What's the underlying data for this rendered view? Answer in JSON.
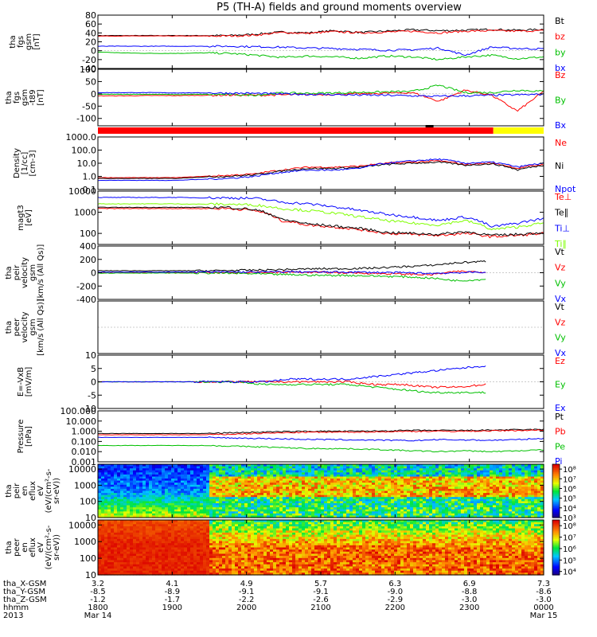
{
  "title": "P5 (TH-A) fields and ground moments overview",
  "colors": {
    "black": "#000000",
    "red": "#ff0000",
    "green": "#00c000",
    "blue": "#0000ff",
    "lightgreen": "#7fff00",
    "yellow": "#ffff00",
    "orange": "#ff7f00"
  },
  "chart_data": [
    {
      "type": "line",
      "id": "fgs",
      "ylabel": [
        "tha",
        "fgs",
        "gsm",
        "[nT]"
      ],
      "ylim": [
        -40,
        80
      ],
      "ticks": [
        "80",
        "60",
        "40",
        "20",
        "0",
        "-20",
        "-40"
      ],
      "tick_values": [
        80,
        60,
        40,
        20,
        0,
        -20,
        -40
      ],
      "series": [
        {
          "name": "Bt",
          "color": "black",
          "values": [
            34,
            34,
            34,
            34,
            34,
            34,
            37,
            42,
            40,
            45,
            41,
            44,
            47,
            45,
            46,
            48,
            46,
            48
          ]
        },
        {
          "name": "bz",
          "color": "red",
          "values": [
            33,
            33,
            33,
            33,
            33,
            33,
            35,
            41,
            39,
            43,
            40,
            42,
            44,
            40,
            44,
            45,
            44,
            45
          ]
        },
        {
          "name": "by",
          "color": "green",
          "values": [
            -3,
            -5,
            -6,
            -6,
            -5,
            -6,
            -10,
            -15,
            -12,
            -14,
            -17,
            -12,
            -14,
            -20,
            -14,
            -10,
            -18,
            -14
          ]
        },
        {
          "name": "bx",
          "color": "blue",
          "values": [
            10,
            10,
            10,
            10,
            10,
            10,
            9,
            8,
            6,
            5,
            3,
            1,
            2,
            6,
            -10,
            8,
            5,
            4
          ]
        }
      ]
    },
    {
      "type": "line",
      "id": "fgs-t89",
      "ylabel": [
        "tha",
        "fgs",
        "gsm",
        "-t89",
        "[nT]"
      ],
      "ylim": [
        -130,
        100
      ],
      "ticks": [
        "100",
        "50",
        "0",
        "-50",
        "-100"
      ],
      "tick_values": [
        100,
        50,
        0,
        -50,
        -100
      ],
      "series": [
        {
          "name": "Bz",
          "color": "red",
          "values": [
            -8,
            -8,
            -7,
            -7,
            -6,
            -5,
            -6,
            -4,
            -3,
            -2,
            0,
            3,
            5,
            -30,
            15,
            -5,
            -70,
            10
          ]
        },
        {
          "name": "By",
          "color": "green",
          "values": [
            -2,
            -2,
            -2,
            -3,
            -2,
            -3,
            -5,
            4,
            2,
            4,
            6,
            8,
            10,
            35,
            5,
            5,
            15,
            10
          ]
        },
        {
          "name": "Bx",
          "color": "blue",
          "values": [
            5,
            5,
            5,
            4,
            4,
            3,
            2,
            0,
            -2,
            -3,
            -5,
            -6,
            -8,
            -10,
            -8,
            -6,
            -4,
            -2
          ]
        }
      ]
    },
    {
      "type": "line",
      "id": "density",
      "scale": "log",
      "ylabel": [
        "Density",
        "[1/cc]",
        "[cm-3]"
      ],
      "ylim": [
        0.1,
        1000
      ],
      "ticks": [
        "1000.0",
        "100.0",
        "10.0",
        "1.0",
        "0.1"
      ],
      "tick_values": [
        1000,
        100,
        10,
        1,
        0.1
      ],
      "series": [
        {
          "name": "Ne",
          "color": "red",
          "values": [
            0.8,
            0.8,
            0.8,
            0.8,
            1.0,
            1.2,
            1.5,
            3,
            5,
            5,
            6,
            10,
            12,
            15,
            8,
            10,
            4,
            8
          ]
        },
        {
          "name": "Ni",
          "color": "black",
          "values": [
            0.7,
            0.7,
            0.7,
            0.7,
            0.9,
            1.0,
            1.3,
            2.5,
            4,
            4,
            5,
            8,
            10,
            12,
            7,
            9,
            3,
            7
          ]
        },
        {
          "name": "Npot",
          "color": "blue",
          "values": [
            0.5,
            0.5,
            0.5,
            0.5,
            0.6,
            0.7,
            1.0,
            2,
            3,
            3,
            4,
            10,
            15,
            20,
            10,
            12,
            5,
            10
          ]
        }
      ]
    },
    {
      "type": "line",
      "id": "temperature",
      "scale": "log",
      "ylabel": [
        "magt3",
        "[eV]"
      ],
      "ylim": [
        30,
        10000
      ],
      "ticks": [
        "10000",
        "1000",
        "100"
      ],
      "tick_values": [
        10000,
        1000,
        100
      ],
      "series": [
        {
          "name": "Te⊥",
          "color": "red",
          "values": [
            1500,
            1500,
            1500,
            1500,
            1500,
            1500,
            1200,
            400,
            250,
            200,
            150,
            100,
            90,
            80,
            100,
            70,
            80,
            100
          ]
        },
        {
          "name": "Te∥",
          "color": "black",
          "values": [
            1700,
            1700,
            1700,
            1700,
            1700,
            1700,
            1300,
            450,
            280,
            220,
            170,
            110,
            100,
            90,
            120,
            80,
            90,
            110
          ]
        },
        {
          "name": "Ti⊥",
          "color": "blue",
          "values": [
            5000,
            5000,
            5000,
            5000,
            4800,
            4800,
            4500,
            3000,
            2500,
            1800,
            1200,
            800,
            600,
            400,
            600,
            200,
            300,
            500
          ]
        },
        {
          "name": "Ti∥",
          "color": "lightgreen",
          "values": [
            2500,
            2500,
            2500,
            2500,
            2400,
            2400,
            2200,
            1500,
            1200,
            900,
            600,
            400,
            300,
            250,
            400,
            150,
            200,
            300
          ]
        }
      ]
    },
    {
      "type": "line",
      "id": "peir-velocity",
      "ylabel": [
        "tha",
        "peir",
        "velocity",
        "gsm",
        "[km/s (All Qs)]"
      ],
      "ylim": [
        -400,
        400
      ],
      "ticks": [
        "400",
        "200",
        "0",
        "-200",
        "-400"
      ],
      "tick_values": [
        400,
        200,
        0,
        -200,
        -400
      ],
      "series": [
        {
          "name": "Vt",
          "color": "black",
          "values": [
            30,
            30,
            30,
            30,
            30,
            35,
            40,
            50,
            60,
            60,
            70,
            90,
            110,
            150,
            170
          ]
        },
        {
          "name": "Vz",
          "color": "red",
          "values": [
            5,
            5,
            5,
            5,
            5,
            0,
            5,
            10,
            5,
            0,
            -10,
            -20,
            -30,
            20,
            10
          ]
        },
        {
          "name": "Vy",
          "color": "green",
          "values": [
            -5,
            -5,
            -5,
            -5,
            -5,
            -10,
            -20,
            -30,
            -40,
            -40,
            -50,
            -60,
            -80,
            -120,
            -100
          ]
        },
        {
          "name": "Vx",
          "color": "blue",
          "values": [
            10,
            10,
            10,
            10,
            10,
            10,
            10,
            15,
            10,
            10,
            5,
            0,
            -10,
            0,
            10
          ]
        }
      ]
    },
    {
      "type": "line",
      "id": "peer-velocity",
      "ylabel": [
        "tha",
        "peer",
        "velocity",
        "gsm",
        "[km/s (All Qs)]"
      ],
      "ylim": [
        -1,
        1
      ],
      "ticks": [],
      "tick_values": [],
      "series": [
        {
          "name": "Vt",
          "color": "black",
          "values": []
        },
        {
          "name": "Vz",
          "color": "red",
          "values": []
        },
        {
          "name": "Vy",
          "color": "green",
          "values": []
        },
        {
          "name": "Vx",
          "color": "blue",
          "values": []
        }
      ]
    },
    {
      "type": "line",
      "id": "efield",
      "ylabel": [
        "E=-VxB",
        "[mV/m]"
      ],
      "ylim": [
        -10,
        10
      ],
      "ticks": [
        "10",
        "5",
        "0",
        "-5",
        "-10"
      ],
      "tick_values": [
        10,
        5,
        0,
        -5,
        -10
      ],
      "series": [
        {
          "name": "Ez",
          "color": "red",
          "values": [
            0,
            0,
            0,
            0,
            0,
            0,
            0,
            0,
            0,
            0,
            -1,
            -1,
            -2,
            -2,
            -1
          ]
        },
        {
          "name": "Ey",
          "color": "green",
          "values": [
            0,
            0,
            0,
            0,
            0,
            0,
            -1,
            -1,
            -1,
            -1,
            -2,
            -3,
            -4,
            -4,
            -4
          ]
        },
        {
          "name": "Ex",
          "color": "blue",
          "values": [
            0,
            0,
            0,
            0,
            0,
            0,
            0,
            1,
            1,
            1,
            2,
            3,
            4,
            5,
            6
          ]
        }
      ]
    },
    {
      "type": "line",
      "id": "pressure",
      "scale": "log",
      "ylabel": [
        "Pressure",
        "[nPa]"
      ],
      "ylim": [
        0.001,
        100
      ],
      "ticks": [
        "100.000",
        "10.000",
        "1.000",
        "0.100",
        "0.010",
        "0.001"
      ],
      "tick_values": [
        100,
        10,
        1,
        0.1,
        0.01,
        0.001
      ],
      "series": [
        {
          "name": "Pt",
          "color": "black",
          "values": [
            0.6,
            0.6,
            0.6,
            0.6,
            0.6,
            0.7,
            0.8,
            0.9,
            1.0,
            1.0,
            1.0,
            1.1,
            1.2,
            1.2,
            1.2,
            1.3,
            1.4,
            1.5
          ]
        },
        {
          "name": "Pb",
          "color": "red",
          "values": [
            0.45,
            0.45,
            0.45,
            0.45,
            0.45,
            0.5,
            0.6,
            0.7,
            0.8,
            0.8,
            0.85,
            0.9,
            1.0,
            1.0,
            1.0,
            1.1,
            1.2,
            1.3
          ]
        },
        {
          "name": "Pe",
          "color": "green",
          "values": [
            0.04,
            0.04,
            0.04,
            0.04,
            0.04,
            0.035,
            0.03,
            0.025,
            0.02,
            0.02,
            0.018,
            0.015,
            0.012,
            0.01,
            0.012,
            0.01,
            0.012,
            0.015
          ]
        },
        {
          "name": "Pi",
          "color": "blue",
          "values": [
            0.25,
            0.25,
            0.25,
            0.25,
            0.25,
            0.22,
            0.2,
            0.18,
            0.16,
            0.15,
            0.14,
            0.13,
            0.12,
            0.15,
            0.14,
            0.13,
            0.15,
            0.2
          ]
        }
      ]
    },
    {
      "type": "heatmap",
      "id": "peir-spectrogram",
      "scale": "log",
      "ylabel": [
        "tha",
        "peir",
        "en",
        "eflux",
        "eV",
        "(eV/(cm²-s-",
        "sr-eV))"
      ],
      "ylim": [
        10,
        20000
      ],
      "ticks": [
        "10000",
        "1000",
        "100",
        "10"
      ],
      "tick_values": [
        10000,
        1000,
        100,
        10
      ],
      "colorbar": {
        "ticks": [
          "10⁸",
          "10⁷",
          "10⁶",
          "10⁵",
          "10⁴",
          "10³"
        ],
        "tick_values": [
          8,
          7,
          6,
          5,
          4,
          3
        ],
        "range": [
          3,
          8.5
        ]
      }
    },
    {
      "type": "heatmap",
      "id": "peer-spectrogram",
      "scale": "log",
      "ylabel": [
        "tha",
        "peer",
        "en",
        "eflux",
        "eV",
        "(eV/(cm²-s-",
        "sr-eV))"
      ],
      "ylim": [
        10,
        20000
      ],
      "ticks": [
        "10000",
        "1000",
        "100",
        "10"
      ],
      "tick_values": [
        10000,
        1000,
        100,
        10
      ],
      "colorbar": {
        "ticks": [
          "10⁸",
          "10⁷",
          "10⁶",
          "10⁵",
          "10⁴"
        ],
        "tick_values": [
          8,
          7,
          6,
          5,
          4
        ],
        "range": [
          3.7,
          8.5
        ]
      }
    }
  ],
  "time_axis": {
    "range": [
      1800,
      2400
    ],
    "row_labels": [
      "tha_X-GSM",
      "tha_Y-GSM",
      "tha_Z-GSM",
      "hhmm",
      "2013"
    ],
    "columns": [
      {
        "t": 1800,
        "x": "3.2",
        "y": "-8.5",
        "z": "-1.2",
        "hhmm": "1800",
        "date": "Mar 14"
      },
      {
        "t": 1900,
        "x": "4.1",
        "y": "-8.9",
        "z": "-1.7",
        "hhmm": "1900",
        "date": ""
      },
      {
        "t": 2000,
        "x": "4.9",
        "y": "-9.1",
        "z": "-2.2",
        "hhmm": "2000",
        "date": ""
      },
      {
        "t": 2100,
        "x": "5.7",
        "y": "-9.1",
        "z": "-2.6",
        "hhmm": "2100",
        "date": ""
      },
      {
        "t": 2200,
        "x": "6.3",
        "y": "-9.0",
        "z": "-2.9",
        "hhmm": "2200",
        "date": ""
      },
      {
        "t": 2300,
        "x": "6.9",
        "y": "-8.8",
        "z": "-3.0",
        "hhmm": "2300",
        "date": ""
      },
      {
        "t": 2400,
        "x": "7.3",
        "y": "-8.6",
        "z": "-3.0",
        "hhmm": "0000",
        "date": "Mar 15"
      }
    ]
  }
}
